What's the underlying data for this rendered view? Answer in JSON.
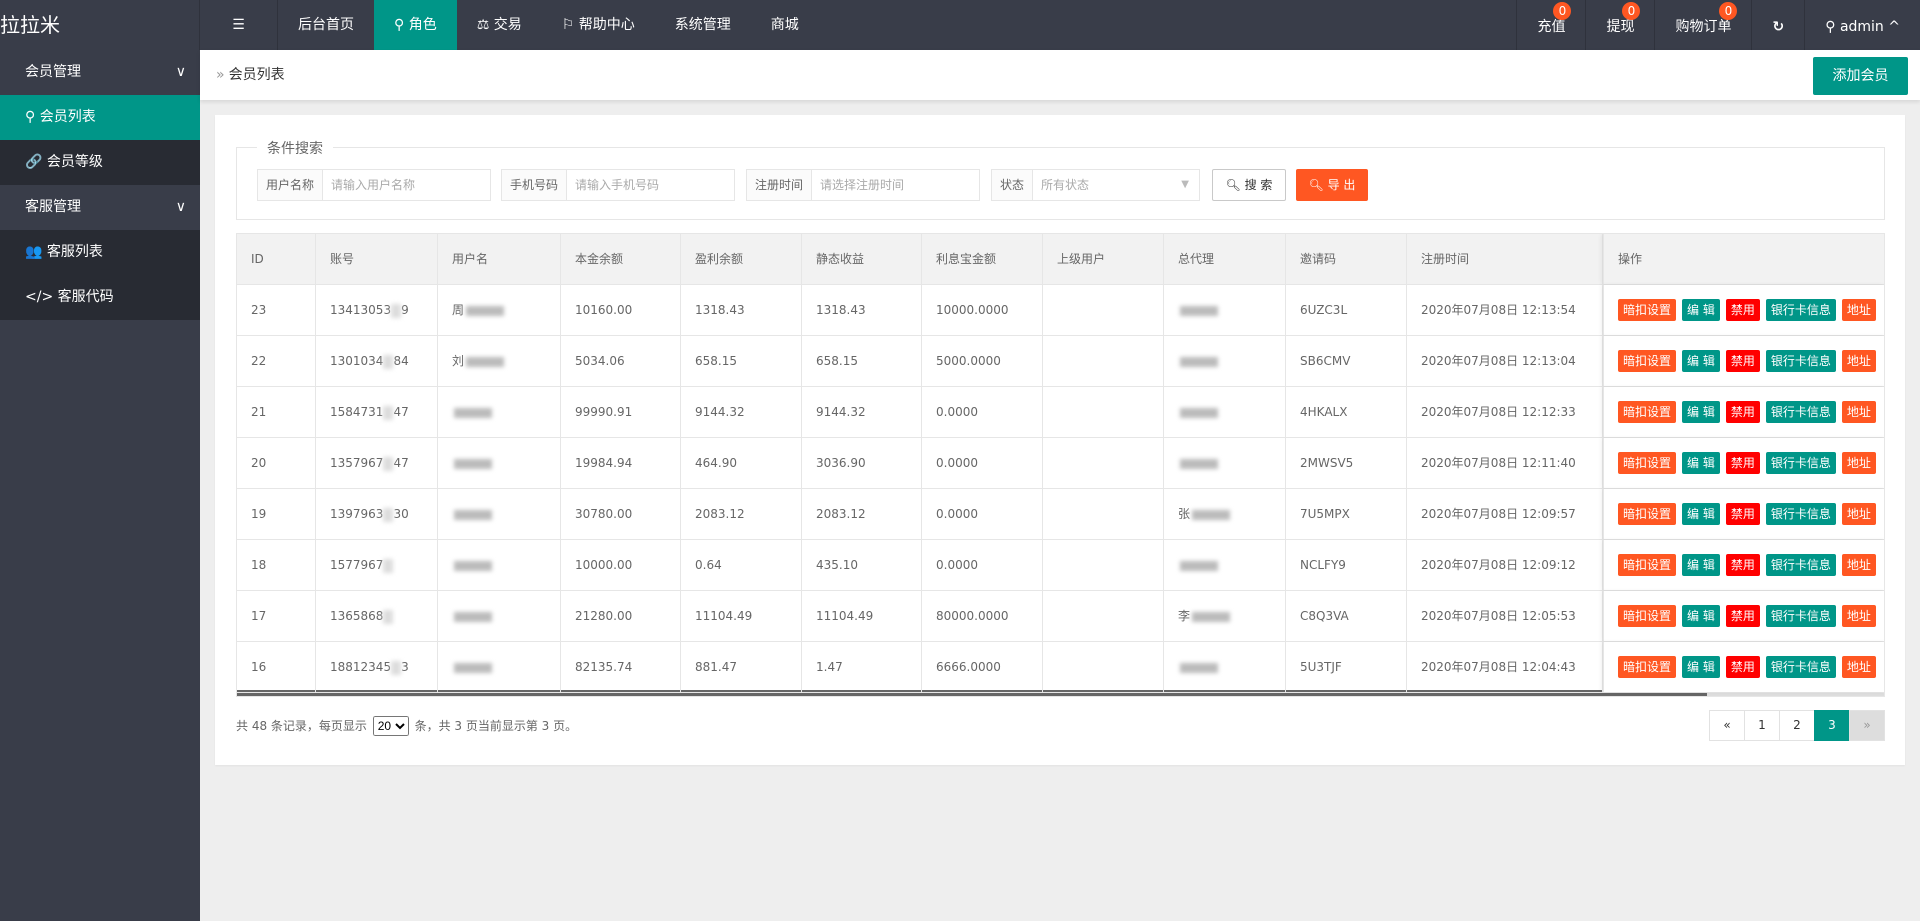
{
  "app": {
    "title": "拉拉米"
  },
  "nav": {
    "items": [
      {
        "label": "后台首页",
        "icon": ""
      },
      {
        "label": "角色",
        "icon": "user-icon",
        "active": true
      },
      {
        "label": "交易",
        "icon": "scale-icon"
      },
      {
        "label": "帮助中心",
        "icon": "flag-icon"
      },
      {
        "label": "系统管理",
        "icon": ""
      },
      {
        "label": "商城",
        "icon": ""
      }
    ],
    "right": [
      {
        "label": "充值",
        "badge": "0"
      },
      {
        "label": "提现",
        "badge": "0"
      },
      {
        "label": "购物订单",
        "badge": "0"
      }
    ],
    "user": "admin"
  },
  "sidebar": {
    "groups": [
      {
        "label": "会员管理",
        "items": [
          {
            "label": "会员列表",
            "icon": "user-icon",
            "active": true
          },
          {
            "label": "会员等级",
            "icon": "link-icon"
          }
        ]
      },
      {
        "label": "客服管理",
        "items": [
          {
            "label": "客服列表",
            "icon": "users-icon"
          },
          {
            "label": "客服代码",
            "icon": "code-icon"
          }
        ]
      }
    ]
  },
  "breadcrumb": {
    "current": "会员列表"
  },
  "toolbar": {
    "add_label": "添加会员"
  },
  "search": {
    "legend": "条件搜索",
    "username": {
      "label": "用户名称",
      "placeholder": "请输入用户名称"
    },
    "phone": {
      "label": "手机号码",
      "placeholder": "请输入手机号码"
    },
    "regtime": {
      "label": "注册时间",
      "placeholder": "请选择注册时间"
    },
    "status": {
      "label": "状态",
      "value": "所有状态"
    },
    "search_label": "搜 索",
    "export_label": "导 出"
  },
  "table": {
    "columns": [
      "ID",
      "账号",
      "用户名",
      "本金余额",
      "盈利余额",
      "静态收益",
      "利息宝金额",
      "上级用户",
      "总代理",
      "邀请码",
      "注册时间",
      "操作"
    ],
    "actions": [
      "暗扣设置",
      "编 辑",
      "禁用",
      "银行卡信息",
      "地址"
    ],
    "rows": [
      {
        "id": "23",
        "acc_a": "13413053",
        "acc_b": "9",
        "name": "周",
        "principal": "10160.00",
        "profit": "1318.43",
        "static": "1318.43",
        "interest": "10000.0000",
        "parent": "",
        "agent": "",
        "code": "6UZC3L",
        "time": "2020年07月08日 12:13:54"
      },
      {
        "id": "22",
        "acc_a": "1301034",
        "acc_b": "84",
        "name": "刘",
        "principal": "5034.06",
        "profit": "658.15",
        "static": "658.15",
        "interest": "5000.0000",
        "parent": "",
        "agent": "",
        "code": "SB6CMV",
        "time": "2020年07月08日 12:13:04"
      },
      {
        "id": "21",
        "acc_a": "1584731",
        "acc_b": "47",
        "name": "",
        "principal": "99990.91",
        "profit": "9144.32",
        "static": "9144.32",
        "interest": "0.0000",
        "parent": "",
        "agent": "",
        "code": "4HKALX",
        "time": "2020年07月08日 12:12:33"
      },
      {
        "id": "20",
        "acc_a": "1357967",
        "acc_b": "47",
        "name": "",
        "principal": "19984.94",
        "profit": "464.90",
        "static": "3036.90",
        "interest": "0.0000",
        "parent": "",
        "agent": "",
        "code": "2MWSV5",
        "time": "2020年07月08日 12:11:40"
      },
      {
        "id": "19",
        "acc_a": "1397963",
        "acc_b": "30",
        "name": "",
        "principal": "30780.00",
        "profit": "2083.12",
        "static": "2083.12",
        "interest": "0.0000",
        "parent": "",
        "agent": "张",
        "code": "7U5MPX",
        "time": "2020年07月08日 12:09:57"
      },
      {
        "id": "18",
        "acc_a": "1577967",
        "acc_b": "",
        "name": "",
        "principal": "10000.00",
        "profit": "0.64",
        "static": "435.10",
        "interest": "0.0000",
        "parent": "",
        "agent": "",
        "code": "NCLFY9",
        "time": "2020年07月08日 12:09:12"
      },
      {
        "id": "17",
        "acc_a": "1365868",
        "acc_b": "",
        "name": "",
        "principal": "21280.00",
        "profit": "11104.49",
        "static": "11104.49",
        "interest": "80000.0000",
        "parent": "",
        "agent": "李",
        "code": "C8Q3VA",
        "time": "2020年07月08日 12:05:53"
      },
      {
        "id": "16",
        "acc_a": "18812345",
        "acc_b": "3",
        "name": "",
        "principal": "82135.74",
        "profit": "881.47",
        "static": "1.47",
        "interest": "6666.0000",
        "parent": "",
        "agent": "",
        "code": "5U3TJF",
        "time": "2020年07月08日 12:04:43"
      }
    ]
  },
  "footer": {
    "pre": "共 48 条记录，每页显示",
    "per_page": "20",
    "post": "条，共 3 页当前显示第 3 页。"
  },
  "pagination": {
    "prev": "«",
    "pages": [
      "1",
      "2",
      "3"
    ],
    "current": "3",
    "next": "»"
  },
  "colors": {
    "accent": "#009688",
    "warn": "#ff5722",
    "danger": "#ff0000",
    "header": "#393d49"
  }
}
